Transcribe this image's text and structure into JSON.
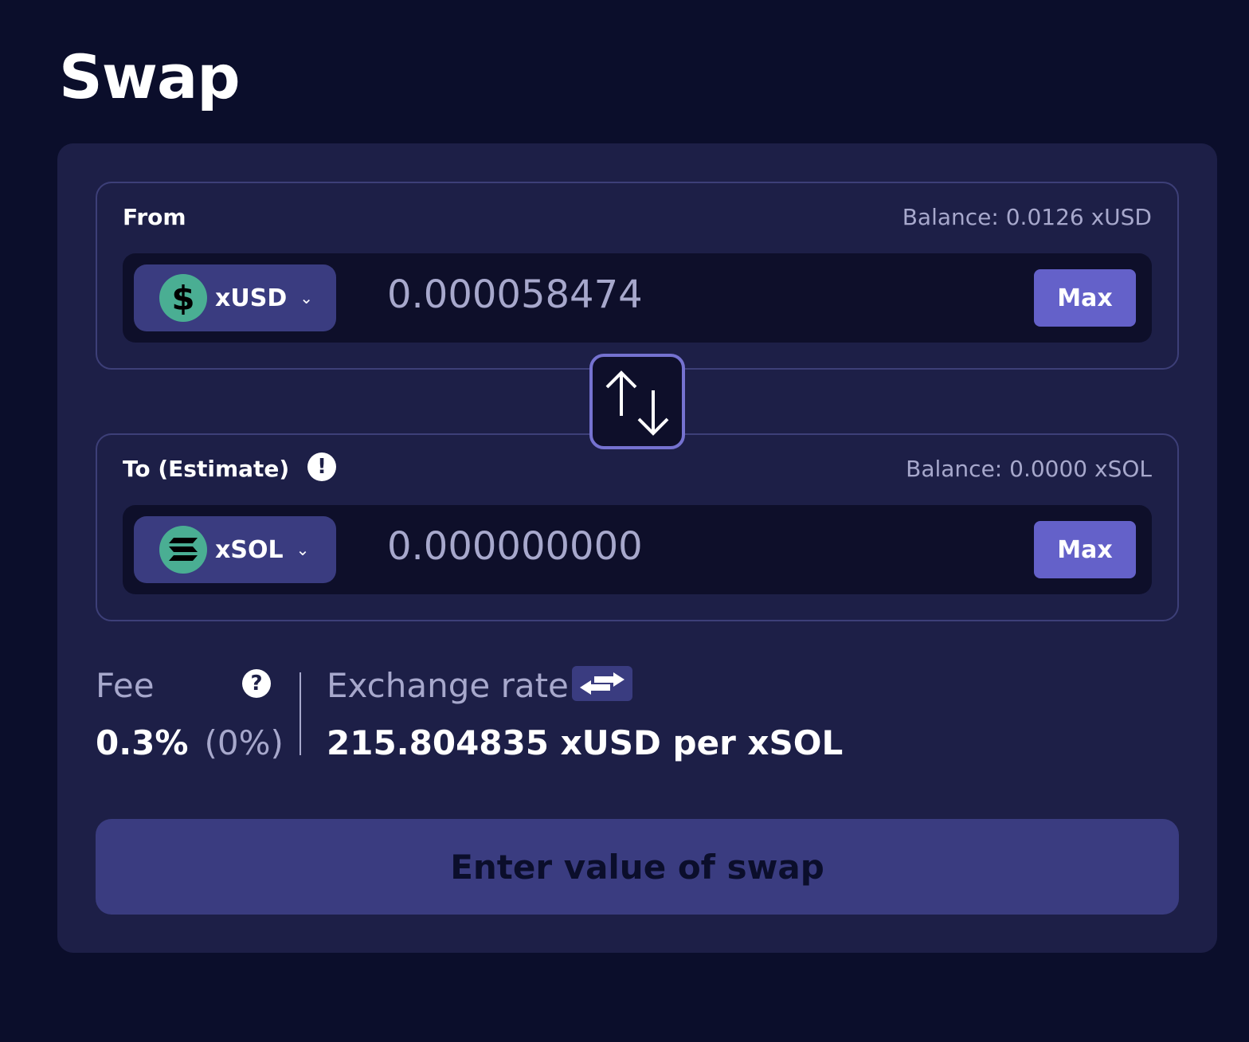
{
  "page": {
    "title": "Swap"
  },
  "from": {
    "label": "From",
    "balance": "Balance: 0.0126 xUSD",
    "token": "xUSD",
    "token_icon": "dollar-icon",
    "amount": "0.000058474",
    "max_label": "Max"
  },
  "to": {
    "label": "To (Estimate)",
    "balance": "Balance: 0.0000 xSOL",
    "token": "xSOL",
    "token_icon": "solana-icon",
    "amount": "0.000000000",
    "max_label": "Max"
  },
  "fee": {
    "label": "Fee",
    "value": "0.3%",
    "sub": "(0%)"
  },
  "exchange": {
    "label": "Exchange rate",
    "value": "215.804835 xUSD per xSOL"
  },
  "cta": {
    "label": "Enter value of swap"
  },
  "colors": {
    "background": "#0b0e2b",
    "card": "#1d1f47",
    "accent": "#6461c9",
    "pill": "#3a3c80",
    "token": "#4aae93"
  }
}
